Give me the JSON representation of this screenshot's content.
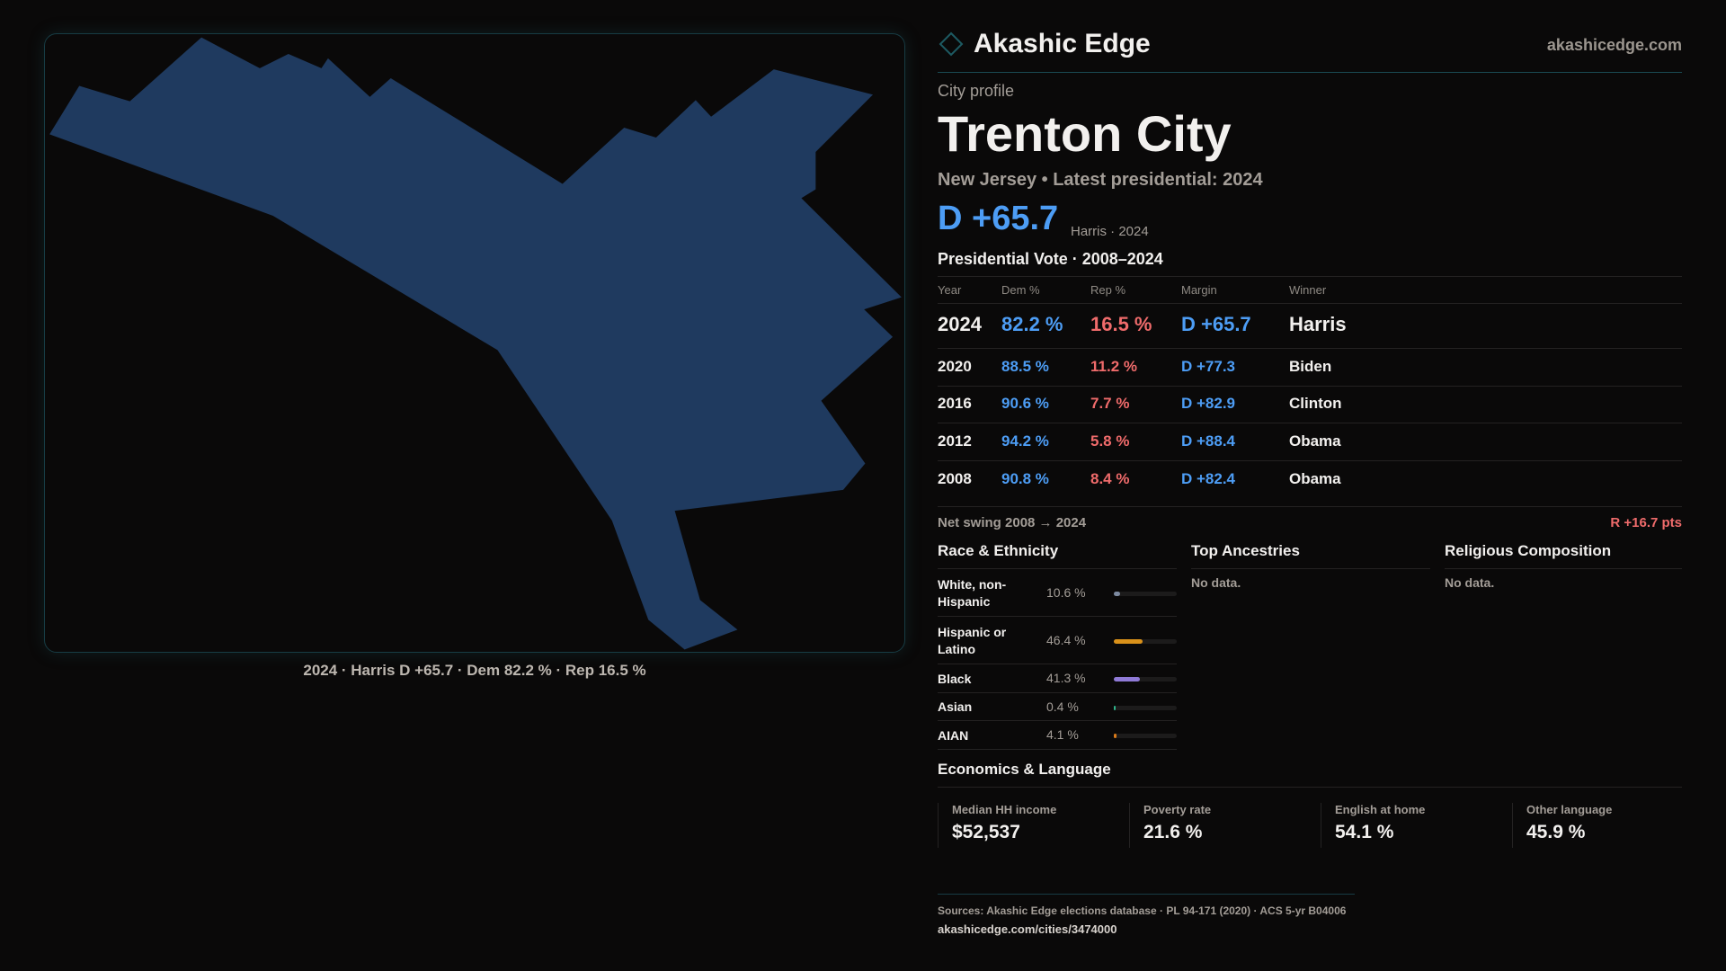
{
  "brand": {
    "name": "Akashic Edge",
    "site": "akashicedge.com",
    "logo_icon": "diamond-outline-icon"
  },
  "map": {
    "caption": "2024 · Harris D +65.7 · Dem 82.2 % · Rep 16.5 %",
    "fill": "#1f3a5f"
  },
  "profile": {
    "kicker": "City profile",
    "title": "Trenton City",
    "subtitle": "New Jersey • Latest presidential: 2024",
    "margin": "D +65.7",
    "margin_note": "Harris · 2024"
  },
  "table": {
    "title": "Presidential Vote · 2008–2024",
    "headers": [
      "Year",
      "Dem %",
      "Rep %",
      "Margin",
      "Winner"
    ],
    "rows": [
      {
        "year": "2024",
        "dem": "82.2 %",
        "rep": "16.5 %",
        "margin": "D +65.7",
        "winner": "Harris"
      },
      {
        "year": "2020",
        "dem": "88.5 %",
        "rep": "11.2 %",
        "margin": "D +77.3",
        "winner": "Biden"
      },
      {
        "year": "2016",
        "dem": "90.6 %",
        "rep": "7.7 %",
        "margin": "D +82.9",
        "winner": "Clinton"
      },
      {
        "year": "2012",
        "dem": "94.2 %",
        "rep": "5.8 %",
        "margin": "D +88.4",
        "winner": "Obama"
      },
      {
        "year": "2008",
        "dem": "90.8 %",
        "rep": "8.4 %",
        "margin": "D +82.4",
        "winner": "Obama"
      }
    ]
  },
  "swing": {
    "label": "Net swing 2008 → 2024",
    "value": "R +16.7 pts"
  },
  "race": {
    "title": "Race & Ethnicity",
    "items": [
      {
        "label": "White, non-Hispanic",
        "pct": "10.6 %",
        "value": 10.6,
        "color": "#7d8aa0"
      },
      {
        "label": "Hispanic or Latino",
        "pct": "46.4 %",
        "value": 46.4,
        "color": "#d9911a"
      },
      {
        "label": "Black",
        "pct": "41.3 %",
        "value": 41.3,
        "color": "#8f7ad6"
      },
      {
        "label": "Asian",
        "pct": "0.4 %",
        "value": 0.4,
        "color": "#2fb38a"
      },
      {
        "label": "AIAN",
        "pct": "4.1 %",
        "value": 4.1,
        "color": "#d97a1a"
      }
    ]
  },
  "ancestries": {
    "title": "Top Ancestries",
    "empty": "No data."
  },
  "religion": {
    "title": "Religious Composition",
    "empty": "No data."
  },
  "econ": {
    "title": "Economics & Language",
    "stats": [
      {
        "label": "Median HH income",
        "value": "$52,537"
      },
      {
        "label": "Poverty rate",
        "value": "21.6 %"
      },
      {
        "label": "English at home",
        "value": "54.1 %"
      },
      {
        "label": "Other language",
        "value": "45.9 %"
      }
    ]
  },
  "footer": {
    "sources": "Sources: Akashic Edge elections database · PL 94-171 (2020) · ACS 5-yr B04006",
    "url": "akashicedge.com/cities/3474000"
  }
}
